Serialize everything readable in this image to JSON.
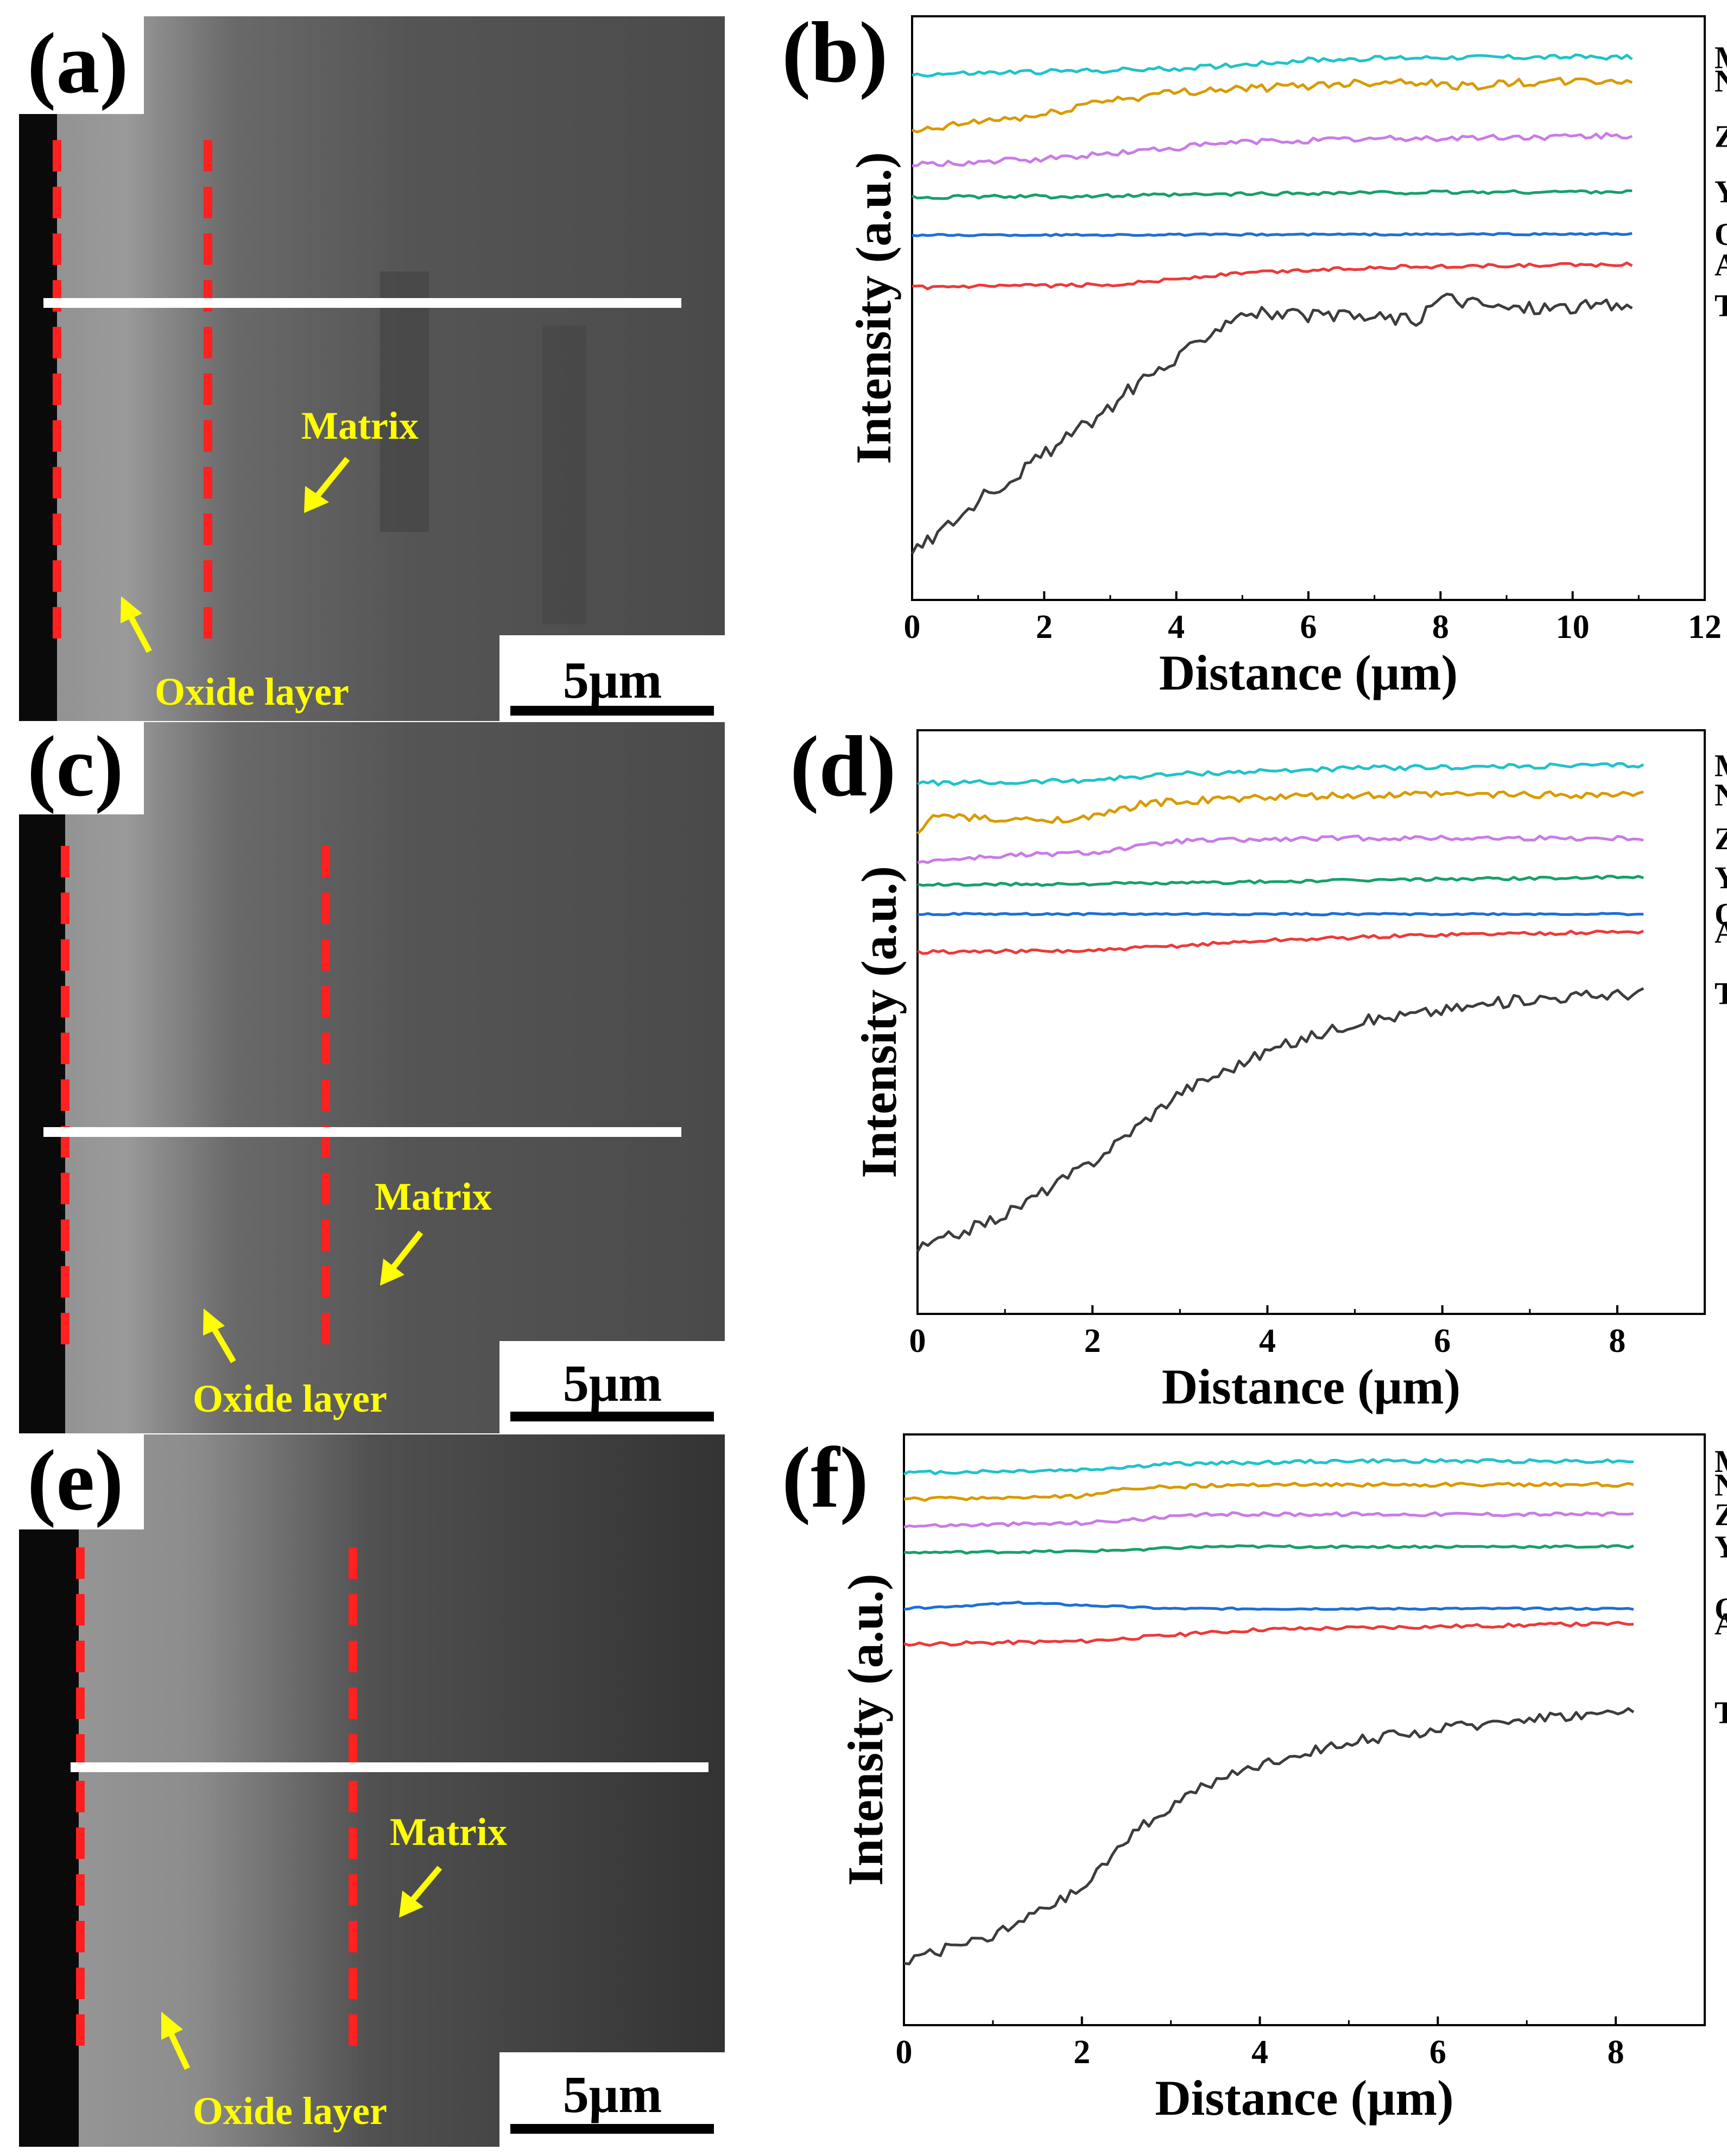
{
  "panels": {
    "a": "(a)",
    "b": "(b)",
    "c": "(c)",
    "d": "(d)",
    "e": "(e)",
    "f": "(f)"
  },
  "sem": {
    "matrix_label": "Matrix",
    "oxide_label": "Oxide layer",
    "scale_bar": "5μm",
    "annotation_color": "#ffff00",
    "boundary_color": "#ff2020",
    "scan_line_color": "#ffffff"
  },
  "chart_data": [
    {
      "panel": "(b)",
      "type": "line",
      "xlabel": "Distance (μm)",
      "ylabel": "Intensity (a.u.)",
      "xlim": [
        0,
        12
      ],
      "xticks": [
        0,
        2,
        4,
        6,
        8,
        10,
        12
      ],
      "xmax_data": 10.9,
      "ylim": [
        0,
        10
      ],
      "series": [
        {
          "name": "Mo",
          "color": "#1fc3c9",
          "profile": [
            [
              0,
              9.0
            ],
            [
              2,
              9.05
            ],
            [
              4,
              9.1
            ],
            [
              6,
              9.25
            ],
            [
              8,
              9.3
            ],
            [
              10.9,
              9.3
            ]
          ],
          "noise": 0.04
        },
        {
          "name": "Nb",
          "color": "#d99a00",
          "profile": [
            [
              0,
              8.0
            ],
            [
              1,
              8.2
            ],
            [
              2,
              8.3
            ],
            [
              2.8,
              8.55
            ],
            [
              3.3,
              8.6
            ],
            [
              4,
              8.7
            ],
            [
              4.6,
              8.75
            ],
            [
              5.5,
              8.78
            ],
            [
              6.5,
              8.85
            ],
            [
              7.5,
              8.9
            ],
            [
              8.3,
              8.8
            ],
            [
              9,
              8.85
            ],
            [
              10.9,
              8.9
            ]
          ],
          "noise": 0.07
        },
        {
          "name": "Zr",
          "color": "#c97ce6",
          "profile": [
            [
              0,
              7.45
            ],
            [
              2,
              7.55
            ],
            [
              3.5,
              7.7
            ],
            [
              5,
              7.85
            ],
            [
              7,
              7.9
            ],
            [
              10.9,
              7.95
            ]
          ],
          "noise": 0.05
        },
        {
          "name": "Y",
          "color": "#18a06a",
          "profile": [
            [
              0,
              6.9
            ],
            [
              3,
              6.92
            ],
            [
              6,
              6.97
            ],
            [
              10.9,
              7.0
            ]
          ],
          "noise": 0.03
        },
        {
          "name": "O",
          "color": "#1f6fd6",
          "profile": [
            [
              0,
              6.25
            ],
            [
              10.9,
              6.27
            ]
          ],
          "noise": 0.015
        },
        {
          "name": "Al",
          "color": "#ec3a3a",
          "profile": [
            [
              0,
              5.35
            ],
            [
              3,
              5.4
            ],
            [
              5,
              5.6
            ],
            [
              7,
              5.7
            ],
            [
              10.9,
              5.75
            ]
          ],
          "noise": 0.03
        },
        {
          "name": "Ti",
          "color": "#3c3c3c",
          "profile": [
            [
              0,
              0.8
            ],
            [
              1,
              1.7
            ],
            [
              2,
              2.5
            ],
            [
              3,
              3.3
            ],
            [
              3.5,
              3.8
            ],
            [
              4,
              4.1
            ],
            [
              4.5,
              4.6
            ],
            [
              5,
              4.95
            ],
            [
              5.5,
              4.9
            ],
            [
              6,
              4.85
            ],
            [
              7,
              4.85
            ],
            [
              7.7,
              4.8
            ],
            [
              8,
              5.2
            ],
            [
              9,
              5.0
            ],
            [
              10.9,
              5.05
            ]
          ],
          "noise": 0.12
        }
      ]
    },
    {
      "panel": "(d)",
      "type": "line",
      "xlabel": "Distance (μm)",
      "ylabel": "Intensity (a.u.)",
      "xlim": [
        0,
        9
      ],
      "xticks": [
        0,
        2,
        4,
        6,
        8
      ],
      "xmax_data": 8.3,
      "ylim": [
        0,
        10
      ],
      "series": [
        {
          "name": "Mo",
          "color": "#1fc3c9",
          "profile": [
            [
              0,
              9.1
            ],
            [
              1,
              9.1
            ],
            [
              2,
              9.15
            ],
            [
              3,
              9.25
            ],
            [
              5,
              9.35
            ],
            [
              8.3,
              9.4
            ]
          ],
          "noise": 0.04
        },
        {
          "name": "Nb",
          "color": "#d99a00",
          "profile": [
            [
              0,
              8.2
            ],
            [
              0.2,
              8.55
            ],
            [
              1,
              8.45
            ],
            [
              2,
              8.5
            ],
            [
              2.6,
              8.75
            ],
            [
              4,
              8.85
            ],
            [
              6,
              8.9
            ],
            [
              8.3,
              8.9
            ]
          ],
          "noise": 0.06
        },
        {
          "name": "Zr",
          "color": "#c97ce6",
          "profile": [
            [
              0,
              7.75
            ],
            [
              1,
              7.85
            ],
            [
              2,
              7.9
            ],
            [
              3,
              8.1
            ],
            [
              5,
              8.15
            ],
            [
              8.3,
              8.15
            ]
          ],
          "noise": 0.04
        },
        {
          "name": "Y",
          "color": "#18a06a",
          "profile": [
            [
              0,
              7.35
            ],
            [
              3,
              7.38
            ],
            [
              6,
              7.45
            ],
            [
              8.3,
              7.48
            ]
          ],
          "noise": 0.025
        },
        {
          "name": "O",
          "color": "#1f6fd6",
          "profile": [
            [
              0,
              6.85
            ],
            [
              8.3,
              6.85
            ]
          ],
          "noise": 0.015
        },
        {
          "name": "Al",
          "color": "#ec3a3a",
          "profile": [
            [
              0,
              6.2
            ],
            [
              2,
              6.22
            ],
            [
              4,
              6.4
            ],
            [
              6,
              6.5
            ],
            [
              8.3,
              6.55
            ]
          ],
          "noise": 0.03
        },
        {
          "name": "Ti",
          "color": "#3c3c3c",
          "profile": [
            [
              0,
              1.1
            ],
            [
              1,
              1.7
            ],
            [
              2,
              2.6
            ],
            [
              3,
              3.8
            ],
            [
              4,
              4.5
            ],
            [
              5,
              5.0
            ],
            [
              6,
              5.2
            ],
            [
              7,
              5.4
            ],
            [
              8.3,
              5.5
            ]
          ],
          "noise": 0.1
        }
      ]
    },
    {
      "panel": "(f)",
      "type": "line",
      "xlabel": "Distance (μm)",
      "ylabel": "Intensity (a.u.)",
      "xlim": [
        0,
        9
      ],
      "xticks": [
        0,
        2,
        4,
        6,
        8
      ],
      "xmax_data": 8.2,
      "ylim": [
        0,
        10
      ],
      "series": [
        {
          "name": "Mo",
          "color": "#1fc3c9",
          "profile": [
            [
              0,
              9.35
            ],
            [
              2,
              9.4
            ],
            [
              3,
              9.5
            ],
            [
              5,
              9.55
            ],
            [
              8.2,
              9.55
            ]
          ],
          "noise": 0.03
        },
        {
          "name": "Nb",
          "color": "#d99a00",
          "profile": [
            [
              0,
              8.9
            ],
            [
              2,
              8.95
            ],
            [
              2.6,
              9.1
            ],
            [
              4,
              9.15
            ],
            [
              8.2,
              9.15
            ]
          ],
          "noise": 0.03
        },
        {
          "name": "Zr",
          "color": "#c97ce6",
          "profile": [
            [
              0,
              8.45
            ],
            [
              2,
              8.5
            ],
            [
              3.5,
              8.65
            ],
            [
              8.2,
              8.65
            ]
          ],
          "noise": 0.03
        },
        {
          "name": "Y",
          "color": "#18a06a",
          "profile": [
            [
              0,
              8.0
            ],
            [
              2,
              8.02
            ],
            [
              3.5,
              8.1
            ],
            [
              8.2,
              8.1
            ]
          ],
          "noise": 0.02
        },
        {
          "name": "O",
          "color": "#1f6fd6",
          "profile": [
            [
              0,
              7.05
            ],
            [
              1.3,
              7.15
            ],
            [
              3,
              7.05
            ],
            [
              8.2,
              7.05
            ]
          ],
          "noise": 0.015
        },
        {
          "name": "Al",
          "color": "#ec3a3a",
          "profile": [
            [
              0,
              6.45
            ],
            [
              2,
              6.5
            ],
            [
              3,
              6.6
            ],
            [
              4,
              6.7
            ],
            [
              6,
              6.75
            ],
            [
              8.2,
              6.8
            ]
          ],
          "noise": 0.03
        },
        {
          "name": "Ti",
          "color": "#3c3c3c",
          "profile": [
            [
              0,
              1.1
            ],
            [
              1,
              1.5
            ],
            [
              2,
              2.3
            ],
            [
              2.6,
              3.3
            ],
            [
              3.3,
              4.0
            ],
            [
              4,
              4.4
            ],
            [
              5,
              4.8
            ],
            [
              6,
              5.0
            ],
            [
              7,
              5.2
            ],
            [
              8.2,
              5.3
            ]
          ],
          "noise": 0.09
        }
      ]
    }
  ]
}
